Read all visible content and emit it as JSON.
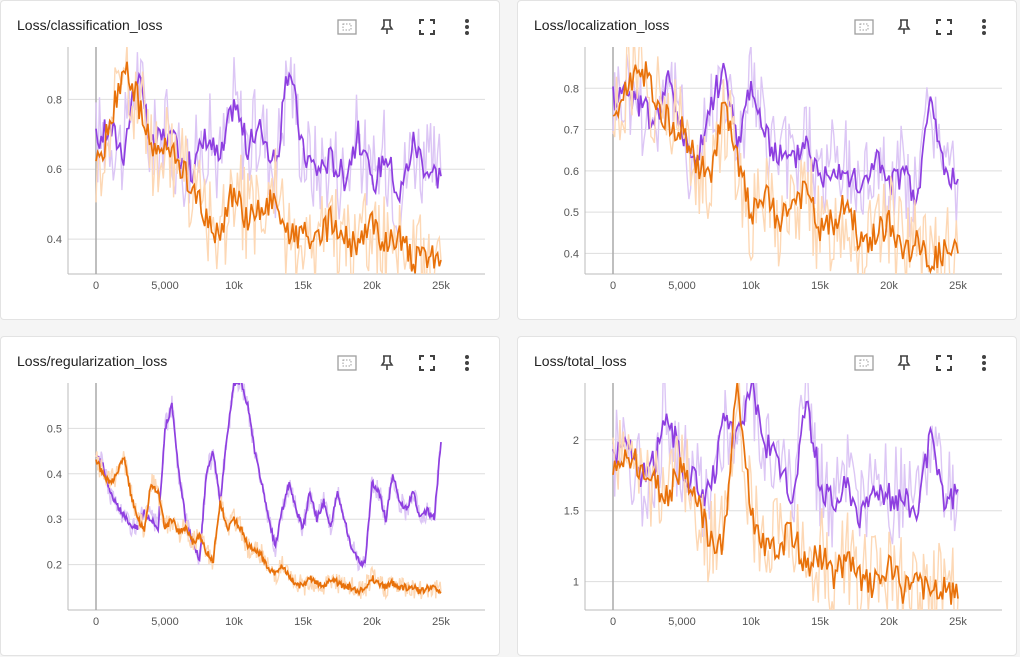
{
  "colors": {
    "purple": "#8e3fe0",
    "purple_raw": "#dcc6f5",
    "orange": "#e8710a",
    "orange_raw": "#fdd8b5",
    "grid": "#dddddd"
  },
  "toolbar_icons": [
    "fit-domain-icon",
    "pin-icon",
    "fullscreen-icon",
    "more-vert-icon"
  ],
  "chart_data": [
    {
      "type": "line",
      "title": "Loss/classification_loss",
      "xlim": [
        0,
        25000
      ],
      "ylim": [
        0.3,
        0.95
      ],
      "xticks": [
        0,
        5000,
        10000,
        15000,
        20000,
        25000
      ],
      "xtick_labels": [
        "0",
        "5,000",
        "10k",
        "15k",
        "20k",
        "25k"
      ],
      "yticks": [
        0.4,
        0.6,
        0.8
      ],
      "ytick_labels": [
        "0.4",
        "0.6",
        "0.8"
      ],
      "series": [
        {
          "color_key": "purple",
          "x": [
            0,
            1000,
            2000,
            3000,
            4000,
            5000,
            6000,
            7000,
            8000,
            9000,
            10000,
            11000,
            12000,
            13000,
            14000,
            15000,
            16000,
            17000,
            18000,
            19000,
            20000,
            21000,
            22000,
            23000,
            24000,
            25000
          ],
          "y": [
            0.68,
            0.72,
            0.65,
            0.88,
            0.66,
            0.7,
            0.65,
            0.6,
            0.7,
            0.62,
            0.8,
            0.66,
            0.72,
            0.6,
            0.9,
            0.65,
            0.6,
            0.63,
            0.58,
            0.7,
            0.55,
            0.65,
            0.52,
            0.68,
            0.6,
            0.58
          ]
        },
        {
          "color_key": "orange",
          "x": [
            0,
            1000,
            2000,
            3000,
            4000,
            5000,
            6000,
            7000,
            8000,
            9000,
            10000,
            11000,
            12000,
            13000,
            14000,
            15000,
            16000,
            17000,
            18000,
            19000,
            20000,
            21000,
            22000,
            23000,
            24000,
            25000
          ],
          "y": [
            0.6,
            0.72,
            0.9,
            0.8,
            0.65,
            0.66,
            0.62,
            0.55,
            0.45,
            0.42,
            0.55,
            0.45,
            0.48,
            0.52,
            0.4,
            0.42,
            0.38,
            0.45,
            0.4,
            0.37,
            0.45,
            0.38,
            0.42,
            0.33,
            0.36,
            0.34
          ]
        }
      ]
    },
    {
      "type": "line",
      "title": "Loss/localization_loss",
      "xlim": [
        0,
        25000
      ],
      "ylim": [
        0.35,
        0.9
      ],
      "xticks": [
        0,
        5000,
        10000,
        15000,
        20000,
        25000
      ],
      "xtick_labels": [
        "0",
        "5,000",
        "10k",
        "15k",
        "20k",
        "25k"
      ],
      "yticks": [
        0.4,
        0.5,
        0.6,
        0.7,
        0.8
      ],
      "ytick_labels": [
        "0.4",
        "0.5",
        "0.6",
        "0.7",
        "0.8"
      ],
      "series": [
        {
          "color_key": "purple",
          "x": [
            0,
            1000,
            2000,
            3000,
            4000,
            5000,
            6000,
            7000,
            8000,
            9000,
            10000,
            11000,
            12000,
            13000,
            14000,
            15000,
            16000,
            17000,
            18000,
            19000,
            20000,
            21000,
            22000,
            23000,
            24000,
            25000
          ],
          "y": [
            0.78,
            0.8,
            0.76,
            0.72,
            0.82,
            0.7,
            0.6,
            0.75,
            0.85,
            0.66,
            0.82,
            0.68,
            0.64,
            0.62,
            0.68,
            0.58,
            0.62,
            0.6,
            0.55,
            0.64,
            0.56,
            0.6,
            0.52,
            0.78,
            0.6,
            0.58
          ]
        },
        {
          "color_key": "orange",
          "x": [
            0,
            1000,
            2000,
            3000,
            4000,
            5000,
            6000,
            7000,
            8000,
            9000,
            10000,
            11000,
            12000,
            13000,
            14000,
            15000,
            16000,
            17000,
            18000,
            19000,
            20000,
            21000,
            22000,
            23000,
            24000,
            25000
          ],
          "y": [
            0.72,
            0.8,
            0.86,
            0.78,
            0.72,
            0.7,
            0.62,
            0.58,
            0.76,
            0.62,
            0.5,
            0.54,
            0.48,
            0.52,
            0.55,
            0.45,
            0.48,
            0.52,
            0.42,
            0.44,
            0.48,
            0.4,
            0.42,
            0.38,
            0.4,
            0.4
          ]
        }
      ]
    },
    {
      "type": "line",
      "title": "Loss/regularization_loss",
      "xlim": [
        0,
        25000
      ],
      "ylim": [
        0.1,
        0.6
      ],
      "xticks": [
        0,
        5000,
        10000,
        15000,
        20000,
        25000
      ],
      "xtick_labels": [
        "0",
        "5,000",
        "10k",
        "15k",
        "20k",
        "25k"
      ],
      "yticks": [
        0.2,
        0.3,
        0.4,
        0.5
      ],
      "ytick_labels": [
        "0.2",
        "0.3",
        "0.4",
        "0.5"
      ],
      "series": [
        {
          "color_key": "purple",
          "x": [
            0,
            500,
            1000,
            1500,
            2000,
            2500,
            3000,
            3500,
            4000,
            4500,
            5000,
            5500,
            6000,
            6500,
            7000,
            7500,
            8000,
            8500,
            9000,
            9500,
            10000,
            10500,
            11000,
            11500,
            12000,
            12500,
            13000,
            13500,
            14000,
            14500,
            15000,
            15500,
            16000,
            16500,
            17000,
            17500,
            18000,
            18500,
            19000,
            19500,
            20000,
            20500,
            21000,
            21500,
            22000,
            22500,
            23000,
            23500,
            24000,
            24500,
            25000
          ],
          "y": [
            0.44,
            0.42,
            0.36,
            0.33,
            0.31,
            0.29,
            0.28,
            0.32,
            0.3,
            0.28,
            0.5,
            0.55,
            0.4,
            0.3,
            0.25,
            0.21,
            0.4,
            0.45,
            0.34,
            0.48,
            0.6,
            0.6,
            0.55,
            0.45,
            0.38,
            0.3,
            0.24,
            0.32,
            0.38,
            0.32,
            0.28,
            0.36,
            0.3,
            0.34,
            0.28,
            0.36,
            0.3,
            0.24,
            0.21,
            0.2,
            0.38,
            0.36,
            0.3,
            0.4,
            0.34,
            0.32,
            0.36,
            0.3,
            0.32,
            0.3,
            0.47
          ]
        },
        {
          "color_key": "orange",
          "x": [
            0,
            500,
            1000,
            1500,
            2000,
            2500,
            3000,
            3500,
            4000,
            4500,
            5000,
            5500,
            6000,
            6500,
            7000,
            7500,
            8000,
            8500,
            9000,
            9500,
            10000,
            10500,
            11000,
            11500,
            12000,
            12500,
            13000,
            13500,
            14000,
            14500,
            15000,
            15500,
            16000,
            16500,
            17000,
            17500,
            18000,
            18500,
            19000,
            19500,
            20000,
            20500,
            21000,
            21500,
            22000,
            22500,
            23000,
            23500,
            24000,
            24500,
            25000
          ],
          "y": [
            0.43,
            0.4,
            0.38,
            0.4,
            0.44,
            0.36,
            0.3,
            0.28,
            0.38,
            0.36,
            0.28,
            0.3,
            0.27,
            0.28,
            0.25,
            0.26,
            0.23,
            0.21,
            0.34,
            0.28,
            0.3,
            0.28,
            0.24,
            0.23,
            0.22,
            0.19,
            0.18,
            0.2,
            0.17,
            0.16,
            0.15,
            0.17,
            0.16,
            0.15,
            0.17,
            0.16,
            0.15,
            0.15,
            0.14,
            0.15,
            0.17,
            0.16,
            0.15,
            0.16,
            0.15,
            0.15,
            0.15,
            0.14,
            0.15,
            0.15,
            0.14
          ]
        }
      ]
    },
    {
      "type": "line",
      "title": "Loss/total_loss",
      "xlim": [
        0,
        25000
      ],
      "ylim": [
        0.8,
        2.4
      ],
      "xticks": [
        0,
        5000,
        10000,
        15000,
        20000,
        25000
      ],
      "xtick_labels": [
        "0",
        "5,000",
        "10k",
        "15k",
        "20k",
        "25k"
      ],
      "yticks": [
        1,
        1.5,
        2
      ],
      "ytick_labels": [
        "1",
        "1.5",
        "2"
      ],
      "series": [
        {
          "color_key": "purple",
          "x": [
            0,
            1000,
            2000,
            3000,
            4000,
            5000,
            6000,
            7000,
            8000,
            9000,
            10000,
            11000,
            12000,
            13000,
            14000,
            15000,
            16000,
            17000,
            18000,
            19000,
            20000,
            21000,
            22000,
            23000,
            24000,
            25000
          ],
          "y": [
            1.9,
            2.0,
            1.7,
            1.85,
            2.2,
            1.8,
            1.7,
            1.6,
            2.1,
            2.0,
            2.4,
            2.0,
            1.8,
            1.6,
            2.3,
            1.7,
            1.55,
            1.7,
            1.45,
            1.7,
            1.6,
            1.6,
            1.5,
            2.0,
            1.55,
            1.65
          ]
        },
        {
          "color_key": "orange",
          "x": [
            0,
            1000,
            2000,
            3000,
            4000,
            5000,
            6000,
            7000,
            8000,
            9000,
            10000,
            11000,
            12000,
            13000,
            14000,
            15000,
            16000,
            17000,
            18000,
            19000,
            20000,
            21000,
            22000,
            23000,
            24000,
            25000
          ],
          "y": [
            1.75,
            1.9,
            1.8,
            1.7,
            1.6,
            1.85,
            1.6,
            1.3,
            1.25,
            2.4,
            1.5,
            1.2,
            1.25,
            1.35,
            1.1,
            1.2,
            1.05,
            1.15,
            1.0,
            0.98,
            1.1,
            0.95,
            1.05,
            0.9,
            0.95,
            0.88
          ]
        }
      ]
    }
  ]
}
